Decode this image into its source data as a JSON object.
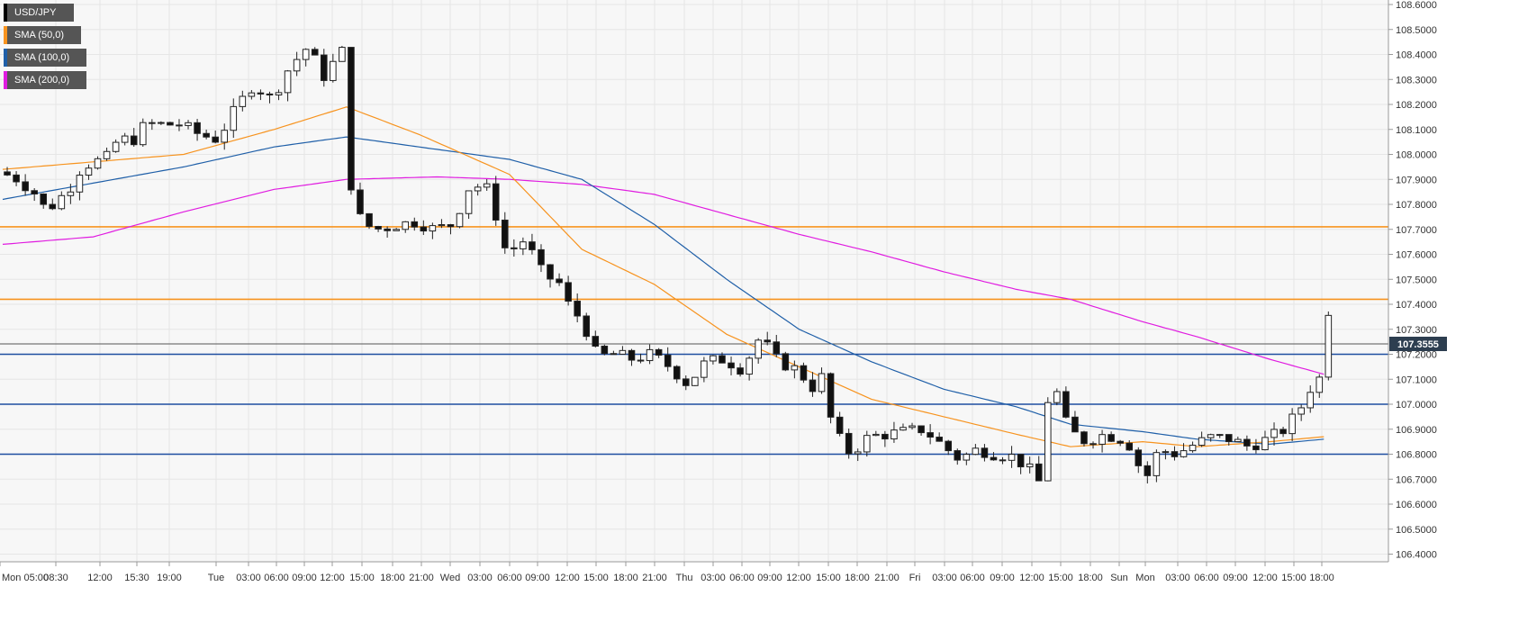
{
  "chart_data": {
    "type": "candlestick",
    "title": "",
    "instrument": "USD/JPY",
    "legend": {
      "placement": "top-left",
      "entries": [
        {
          "label": "USD/JPY",
          "color": "#000000"
        },
        {
          "label": "SMA (50,0)",
          "color": "#f7931e"
        },
        {
          "label": "SMA (100,0)",
          "color": "#1f5fa8"
        },
        {
          "label": "SMA (200,0)",
          "color": "#e01ce0"
        }
      ]
    },
    "y_axis": {
      "position": "right",
      "range": [
        106.35,
        108.62
      ],
      "ticks": [
        "108.6000",
        "108.5000",
        "108.4000",
        "108.3000",
        "108.2000",
        "108.1000",
        "108.0000",
        "107.9000",
        "107.8000",
        "107.7000",
        "107.6000",
        "107.5000",
        "107.4000",
        "107.3000",
        "107.2000",
        "107.1000",
        "107.0000",
        "106.9000",
        "106.8000",
        "106.7000",
        "106.6000",
        "106.5000",
        "106.4000"
      ]
    },
    "x_axis": {
      "ticks": [
        "Mon 05:00",
        "08:30",
        "12:00",
        "15:30",
        "19:00",
        "Tue",
        "03:00",
        "06:00",
        "09:00",
        "12:00",
        "15:00",
        "18:00",
        "21:00",
        "Wed",
        "03:00",
        "06:00",
        "09:00",
        "12:00",
        "15:00",
        "18:00",
        "21:00",
        "Thu",
        "03:00",
        "06:00",
        "09:00",
        "12:00",
        "15:00",
        "18:00",
        "21:00",
        "Fri",
        "03:00",
        "06:00",
        "09:00",
        "12:00",
        "15:00",
        "18:00",
        "Sun",
        "Mon",
        "03:00",
        "06:00",
        "09:00",
        "12:00",
        "15:00",
        "18:00"
      ]
    },
    "grid": true,
    "last_price": {
      "label": "107.3555",
      "value": 107.3555
    },
    "horizontal_levels": [
      {
        "value": 107.71,
        "color": "#f7931e"
      },
      {
        "value": 107.42,
        "color": "#f7931e"
      },
      {
        "value": 107.2,
        "color": "#1f4ea0"
      },
      {
        "value": 107.0,
        "color": "#1f4ea0"
      },
      {
        "value": 106.8,
        "color": "#1f4ea0"
      }
    ],
    "price_path": [
      [
        0,
        107.93
      ],
      [
        2,
        107.9
      ],
      [
        4,
        107.84
      ],
      [
        5,
        107.78
      ],
      [
        6,
        107.8
      ],
      [
        8,
        107.88
      ],
      [
        9,
        107.95
      ],
      [
        12,
        107.99
      ],
      [
        13,
        108.06
      ],
      [
        15,
        108.06
      ],
      [
        16,
        108.12
      ],
      [
        20,
        108.12
      ],
      [
        22,
        108.08
      ],
      [
        24,
        108.06
      ],
      [
        26,
        108.18
      ],
      [
        28,
        108.28
      ],
      [
        30,
        108.22
      ],
      [
        32,
        108.35
      ],
      [
        34,
        108.43
      ],
      [
        36,
        108.3
      ],
      [
        37,
        108.38
      ],
      [
        38,
        108.42
      ],
      [
        38.3,
        107.95
      ],
      [
        39,
        107.85
      ],
      [
        40,
        107.72
      ],
      [
        42,
        107.7
      ],
      [
        44,
        107.72
      ],
      [
        46,
        107.73
      ],
      [
        48,
        107.7
      ],
      [
        50,
        107.72
      ],
      [
        52,
        107.88
      ],
      [
        54,
        107.86
      ],
      [
        56,
        107.6
      ],
      [
        58,
        107.66
      ],
      [
        60,
        107.52
      ],
      [
        62,
        107.48
      ],
      [
        63,
        107.38
      ],
      [
        64,
        107.35
      ],
      [
        65,
        107.28
      ],
      [
        66,
        107.19
      ],
      [
        68,
        107.2
      ],
      [
        70,
        107.18
      ],
      [
        72,
        107.2
      ],
      [
        74,
        107.15
      ],
      [
        76,
        107.08
      ],
      [
        78,
        107.17
      ],
      [
        80,
        107.18
      ],
      [
        82,
        107.14
      ],
      [
        84,
        107.27
      ],
      [
        86,
        107.17
      ],
      [
        88,
        107.14
      ],
      [
        90,
        107.06
      ],
      [
        91,
        107.12
      ],
      [
        92,
        106.9
      ],
      [
        94,
        106.8
      ],
      [
        96,
        106.87
      ],
      [
        98,
        106.88
      ],
      [
        100,
        106.89
      ],
      [
        102,
        106.9
      ],
      [
        104,
        106.84
      ],
      [
        106,
        106.78
      ],
      [
        108,
        106.82
      ],
      [
        110,
        106.8
      ],
      [
        112,
        106.79
      ],
      [
        114,
        106.73
      ],
      [
        115,
        106.68
      ],
      [
        116,
        107.1
      ],
      [
        117,
        107.03
      ],
      [
        118,
        106.9
      ],
      [
        120,
        106.85
      ],
      [
        122,
        106.88
      ],
      [
        124,
        106.86
      ],
      [
        125,
        106.83
      ],
      [
        126,
        106.74
      ],
      [
        127,
        106.71
      ],
      [
        128,
        106.82
      ],
      [
        130,
        106.8
      ],
      [
        132,
        106.84
      ],
      [
        134,
        106.87
      ],
      [
        136,
        106.86
      ],
      [
        138,
        106.83
      ],
      [
        140,
        106.86
      ],
      [
        142,
        106.9
      ],
      [
        144,
        107.0
      ],
      [
        145,
        107.08
      ],
      [
        146,
        107.11
      ],
      [
        146.8,
        107.355
      ]
    ],
    "sma50": [
      [
        0,
        107.94
      ],
      [
        20,
        108.0
      ],
      [
        30,
        108.1
      ],
      [
        38,
        108.19
      ],
      [
        46,
        108.08
      ],
      [
        56,
        107.92
      ],
      [
        64,
        107.62
      ],
      [
        72,
        107.48
      ],
      [
        80,
        107.28
      ],
      [
        88,
        107.15
      ],
      [
        96,
        107.02
      ],
      [
        104,
        106.95
      ],
      [
        112,
        106.88
      ],
      [
        118,
        106.83
      ],
      [
        126,
        106.85
      ],
      [
        132,
        106.83
      ],
      [
        140,
        106.85
      ],
      [
        146,
        106.87
      ]
    ],
    "sma100": [
      [
        0,
        107.82
      ],
      [
        20,
        107.95
      ],
      [
        30,
        108.03
      ],
      [
        38,
        108.07
      ],
      [
        48,
        108.02
      ],
      [
        56,
        107.98
      ],
      [
        64,
        107.9
      ],
      [
        72,
        107.72
      ],
      [
        80,
        107.5
      ],
      [
        88,
        107.3
      ],
      [
        96,
        107.17
      ],
      [
        104,
        107.06
      ],
      [
        112,
        106.99
      ],
      [
        118,
        106.92
      ],
      [
        126,
        106.89
      ],
      [
        132,
        106.86
      ],
      [
        140,
        106.84
      ],
      [
        146,
        106.86
      ]
    ],
    "sma200": [
      [
        0,
        107.64
      ],
      [
        10,
        107.67
      ],
      [
        20,
        107.77
      ],
      [
        30,
        107.86
      ],
      [
        38,
        107.9
      ],
      [
        48,
        107.91
      ],
      [
        56,
        107.9
      ],
      [
        64,
        107.88
      ],
      [
        72,
        107.84
      ],
      [
        80,
        107.76
      ],
      [
        88,
        107.68
      ],
      [
        96,
        107.61
      ],
      [
        104,
        107.53
      ],
      [
        112,
        107.46
      ],
      [
        118,
        107.42
      ],
      [
        126,
        107.33
      ],
      [
        132,
        107.27
      ],
      [
        140,
        107.18
      ],
      [
        146,
        107.12
      ]
    ]
  }
}
